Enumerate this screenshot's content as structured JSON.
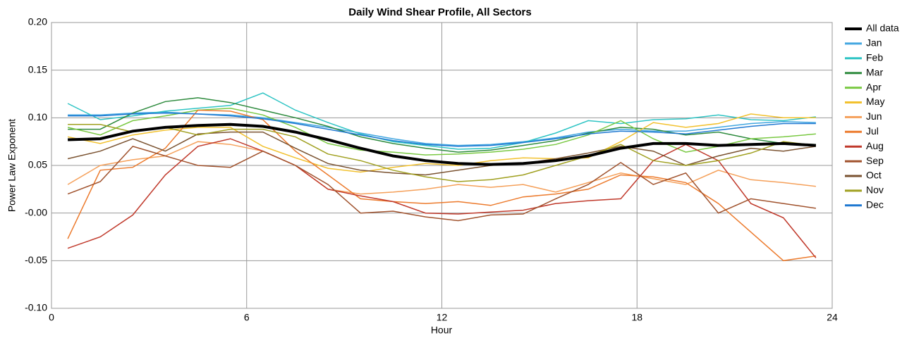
{
  "chart_data": {
    "type": "line",
    "title": "Daily Wind Shear Profile, All Sectors",
    "xlabel": "Hour",
    "ylabel": "Power Law Exponent",
    "x": [
      0.5,
      1.5,
      2.5,
      3.5,
      4.5,
      5.5,
      6.5,
      7.5,
      8.5,
      9.5,
      10.5,
      11.5,
      12.5,
      13.5,
      14.5,
      15.5,
      16.5,
      17.5,
      18.5,
      19.5,
      20.5,
      21.5,
      22.5,
      23.5
    ],
    "xlim": [
      0,
      24
    ],
    "xticks": [
      0,
      6,
      12,
      18,
      24
    ],
    "ylim": [
      -0.1,
      0.2
    ],
    "yticks": [
      {
        "value": -0.1,
        "label": "-0.10"
      },
      {
        "value": -0.05,
        "label": "-0.05"
      },
      {
        "value": 0,
        "label": "-0.00"
      },
      {
        "value": 0.05,
        "label": "0.05"
      },
      {
        "value": 0.1,
        "label": "0.10"
      },
      {
        "value": 0.15,
        "label": "0.15"
      },
      {
        "value": 0.2,
        "label": "0.20"
      }
    ],
    "grid": true,
    "legend": "right",
    "series": [
      {
        "name": "All data",
        "color": "#000000",
        "values": [
          0.077,
          0.078,
          0.086,
          0.09,
          0.092,
          0.093,
          0.091,
          0.085,
          0.077,
          0.068,
          0.06,
          0.055,
          0.052,
          0.051,
          0.052,
          0.055,
          0.06,
          0.068,
          0.073,
          0.073,
          0.071,
          0.072,
          0.073,
          0.071
        ]
      },
      {
        "name": "Jan",
        "color": "#41a6e0",
        "values": [
          0.103,
          0.103,
          0.105,
          0.106,
          0.104,
          0.103,
          0.1,
          0.095,
          0.09,
          0.084,
          0.078,
          0.073,
          0.071,
          0.072,
          0.075,
          0.079,
          0.085,
          0.088,
          0.086,
          0.086,
          0.09,
          0.094,
          0.096,
          0.095
        ]
      },
      {
        "name": "Feb",
        "color": "#2ec4c4",
        "values": [
          0.115,
          0.098,
          0.102,
          0.107,
          0.11,
          0.113,
          0.126,
          0.108,
          0.095,
          0.083,
          0.075,
          0.071,
          0.067,
          0.068,
          0.074,
          0.084,
          0.097,
          0.094,
          0.098,
          0.099,
          0.103,
          0.098,
          0.097,
          0.101
        ]
      },
      {
        "name": "Mar",
        "color": "#2e8b3e",
        "values": [
          0.088,
          0.088,
          0.105,
          0.117,
          0.121,
          0.116,
          0.108,
          0.1,
          0.091,
          0.08,
          0.073,
          0.068,
          0.064,
          0.066,
          0.071,
          0.076,
          0.084,
          0.09,
          0.088,
          0.082,
          0.085,
          0.078,
          0.073,
          0.072
        ]
      },
      {
        "name": "Apr",
        "color": "#7ac943",
        "values": [
          0.09,
          0.082,
          0.097,
          0.102,
          0.108,
          0.11,
          0.103,
          0.09,
          0.073,
          0.066,
          0.064,
          0.061,
          0.062,
          0.064,
          0.067,
          0.072,
          0.082,
          0.097,
          0.078,
          0.064,
          0.07,
          0.078,
          0.08,
          0.083
        ]
      },
      {
        "name": "May",
        "color": "#f2c12e",
        "values": [
          0.08,
          0.073,
          0.082,
          0.087,
          0.09,
          0.09,
          0.07,
          0.058,
          0.047,
          0.043,
          0.048,
          0.052,
          0.05,
          0.055,
          0.058,
          0.057,
          0.058,
          0.075,
          0.095,
          0.09,
          0.094,
          0.104,
          0.1,
          0.1
        ]
      },
      {
        "name": "Jun",
        "color": "#f5a05a",
        "values": [
          0.03,
          0.05,
          0.056,
          0.06,
          0.075,
          0.072,
          0.065,
          0.05,
          0.025,
          0.02,
          0.022,
          0.025,
          0.03,
          0.027,
          0.03,
          0.022,
          0.032,
          0.042,
          0.036,
          0.03,
          0.045,
          0.035,
          0.032,
          0.028
        ]
      },
      {
        "name": "Jul",
        "color": "#ec7a2c",
        "values": [
          -0.027,
          0.045,
          0.048,
          0.068,
          0.108,
          0.107,
          0.098,
          0.065,
          0.04,
          0.015,
          0.012,
          0.01,
          0.012,
          0.008,
          0.017,
          0.02,
          0.025,
          0.04,
          0.038,
          0.032,
          0.01,
          -0.02,
          -0.05,
          -0.045
        ]
      },
      {
        "name": "Aug",
        "color": "#c0392b",
        "values": [
          -0.037,
          -0.025,
          -0.002,
          0.04,
          0.07,
          0.078,
          0.065,
          0.05,
          0.025,
          0.018,
          0.012,
          0.0,
          -0.001,
          0.001,
          0.003,
          0.01,
          0.013,
          0.015,
          0.055,
          0.072,
          0.055,
          0.01,
          -0.005,
          -0.047
        ]
      },
      {
        "name": "Sep",
        "color": "#a0522d",
        "values": [
          0.02,
          0.033,
          0.07,
          0.06,
          0.05,
          0.048,
          0.065,
          0.05,
          0.03,
          0.0,
          0.002,
          -0.004,
          -0.008,
          -0.002,
          -0.001,
          0.015,
          0.03,
          0.053,
          0.03,
          0.042,
          0.0,
          0.015,
          0.01,
          0.005
        ]
      },
      {
        "name": "Oct",
        "color": "#7a5230",
        "values": [
          0.057,
          0.065,
          0.078,
          0.065,
          0.083,
          0.085,
          0.085,
          0.068,
          0.052,
          0.045,
          0.042,
          0.04,
          0.045,
          0.05,
          0.052,
          0.057,
          0.063,
          0.07,
          0.065,
          0.05,
          0.06,
          0.068,
          0.065,
          0.07
        ]
      },
      {
        "name": "Nov",
        "color": "#a0a020",
        "values": [
          0.093,
          0.093,
          0.085,
          0.09,
          0.082,
          0.088,
          0.088,
          0.08,
          0.062,
          0.055,
          0.045,
          0.038,
          0.033,
          0.035,
          0.04,
          0.05,
          0.06,
          0.072,
          0.055,
          0.05,
          0.055,
          0.063,
          0.075,
          0.071
        ]
      },
      {
        "name": "Dec",
        "color": "#1f78d1",
        "values": [
          0.102,
          0.102,
          0.104,
          0.105,
          0.104,
          0.102,
          0.099,
          0.094,
          0.088,
          0.082,
          0.076,
          0.072,
          0.07,
          0.071,
          0.074,
          0.078,
          0.083,
          0.086,
          0.085,
          0.083,
          0.087,
          0.091,
          0.094,
          0.094
        ]
      }
    ]
  }
}
